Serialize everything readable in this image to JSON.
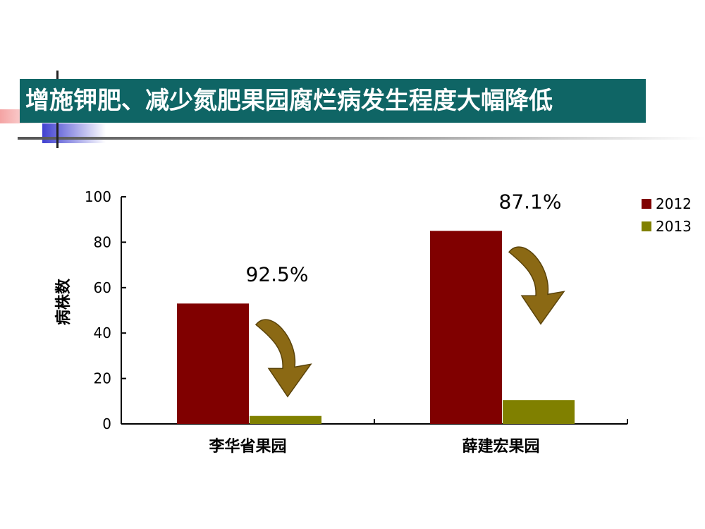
{
  "slide": {
    "title": "增施钾肥、减少氮肥果园腐烂病发生程度大幅降低"
  },
  "colors": {
    "title_bar": "#0f6565",
    "series_2012": "#800000",
    "series_2013": "#808000",
    "arrow": "#8b6914"
  },
  "chart_data": {
    "type": "bar",
    "title": "",
    "xlabel": "",
    "ylabel": "病株数",
    "ylim": [
      0,
      100
    ],
    "yticks": [
      0,
      20,
      40,
      60,
      80,
      100
    ],
    "categories": [
      "李华省果园",
      "薛建宏果园"
    ],
    "series": [
      {
        "name": "2012",
        "values": [
          53,
          85
        ],
        "color": "#800000"
      },
      {
        "name": "2013",
        "values": [
          3.5,
          10.5
        ],
        "color": "#808000"
      }
    ],
    "annotations": [
      {
        "category": "李华省果园",
        "text": "92.5%"
      },
      {
        "category": "薛建宏果园",
        "text": "87.1%"
      }
    ],
    "legend_position": "top-right",
    "grid": false
  }
}
